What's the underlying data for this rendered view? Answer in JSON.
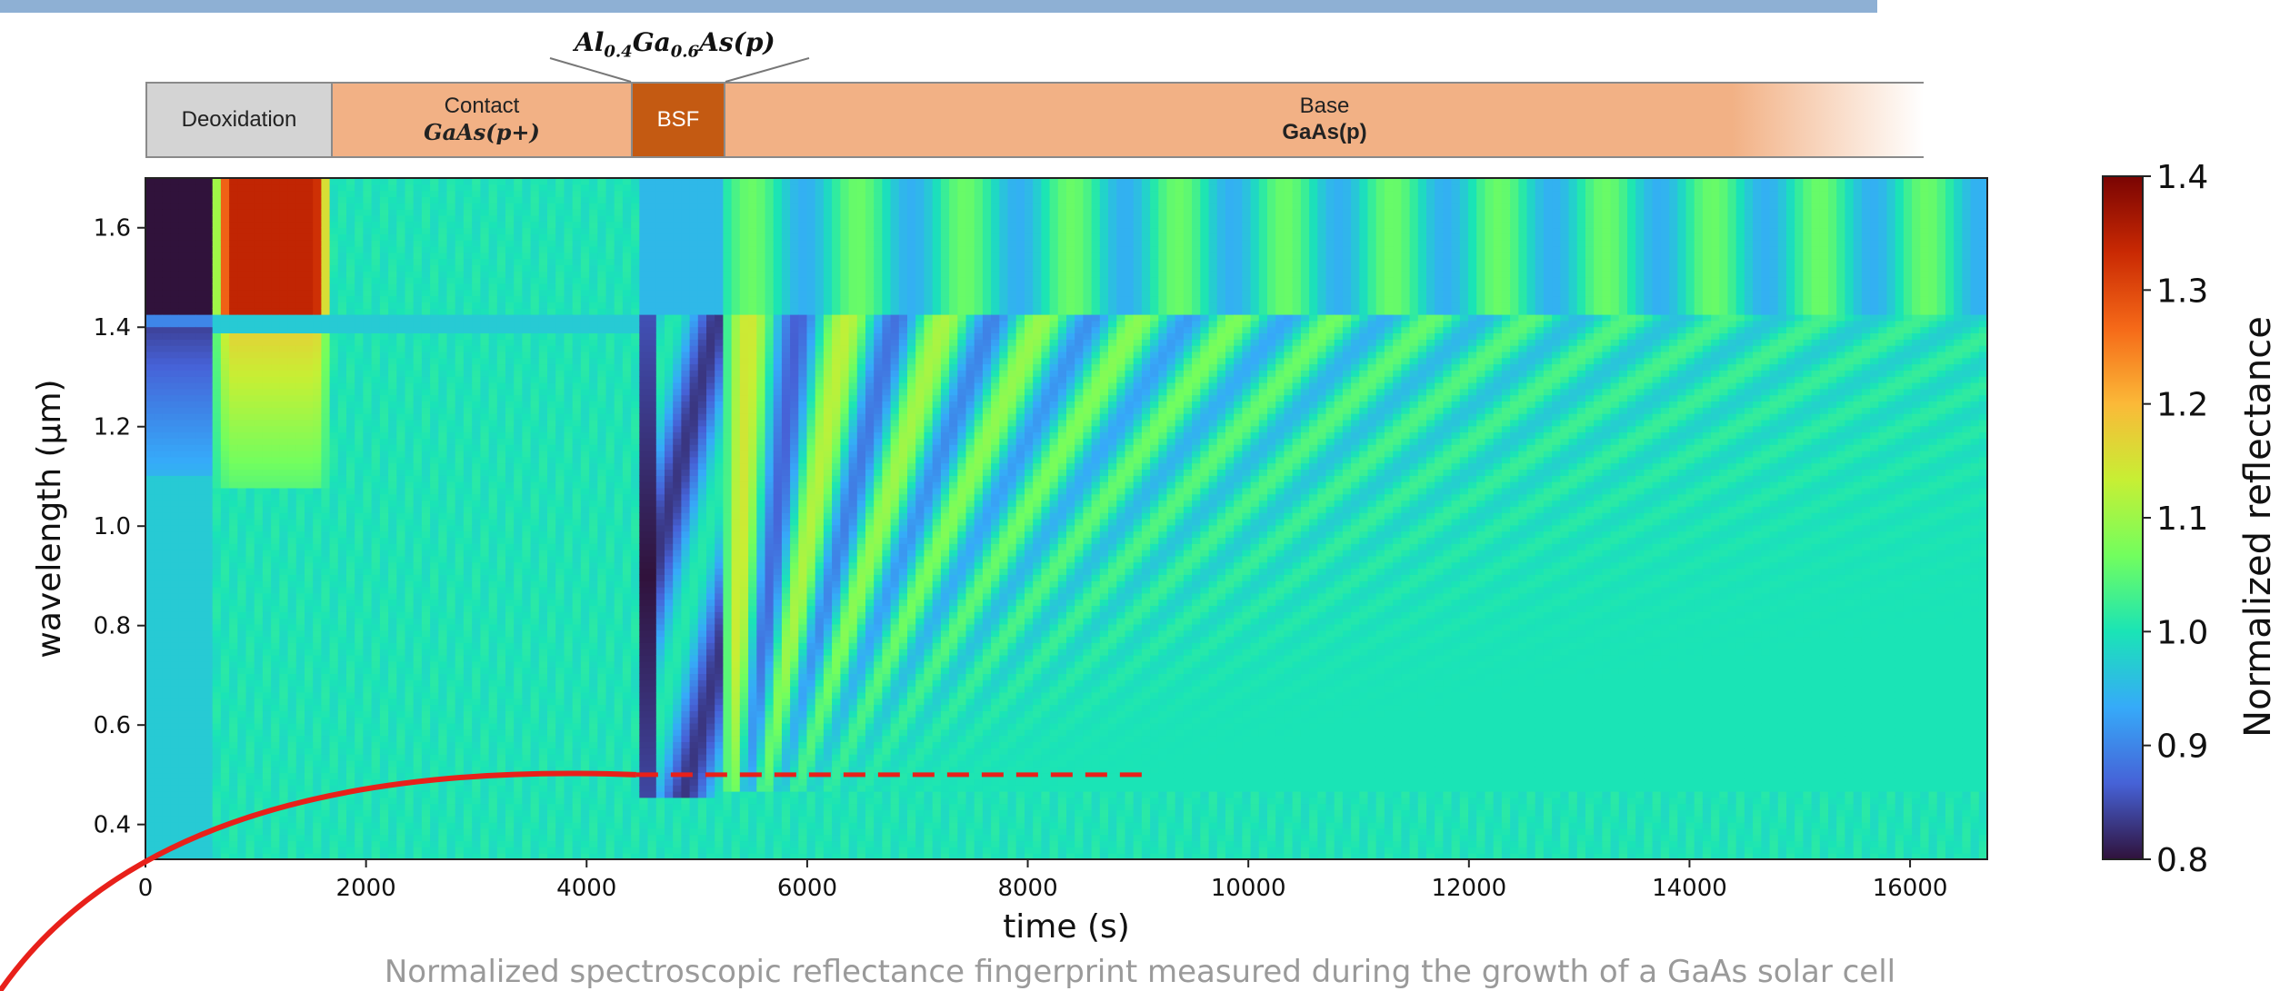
{
  "stage_bar": {
    "segments": [
      {
        "line1": "Deoxidation",
        "line2": ""
      },
      {
        "line1": "Contact",
        "line2": "GaAs(p+)"
      },
      {
        "line1": "BSF",
        "line2": ""
      },
      {
        "line1": "Base",
        "line2": "GaAs(p)"
      }
    ],
    "bsf_composition_label": "Al0.4Ga0.6As(p)"
  },
  "caption": "Normalized spectroscopic reflectance fingerprint measured during the growth of a GaAs solar cell",
  "colors": {
    "colormap": [
      "#30123b",
      "#4662d7",
      "#36aaf9",
      "#1ae4b6",
      "#72fe5e",
      "#c7ef34",
      "#fbb938",
      "#f56918",
      "#c92903",
      "#7a0403"
    ],
    "deoxidation": "#d4d4d4",
    "contact": "#f2b185",
    "bsf": "#c45a12",
    "base": "#f2b185",
    "annotation": "#e8201a"
  },
  "chart_data": {
    "type": "heatmap",
    "xlabel": "time (s)",
    "ylabel": "wavelength (µm)",
    "xlim": [
      0,
      16700
    ],
    "ylim": [
      0.33,
      1.7
    ],
    "x_ticks": [
      0,
      2000,
      4000,
      6000,
      8000,
      10000,
      12000,
      14000,
      16000
    ],
    "y_ticks": [
      0.4,
      0.6,
      0.8,
      1.0,
      1.2,
      1.4,
      1.6
    ],
    "colorbar": {
      "label": "Normalized reflectance",
      "range": [
        0.8,
        1.4
      ],
      "ticks": [
        0.8,
        0.9,
        1.0,
        1.1,
        1.2,
        1.3,
        1.4
      ]
    },
    "stage_boundaries_s": [
      1700,
      4450,
      5250
    ],
    "annotation": {
      "type": "dashed-line",
      "wavelength": 0.5,
      "x_start": 4450,
      "x_end": 9100
    }
  }
}
